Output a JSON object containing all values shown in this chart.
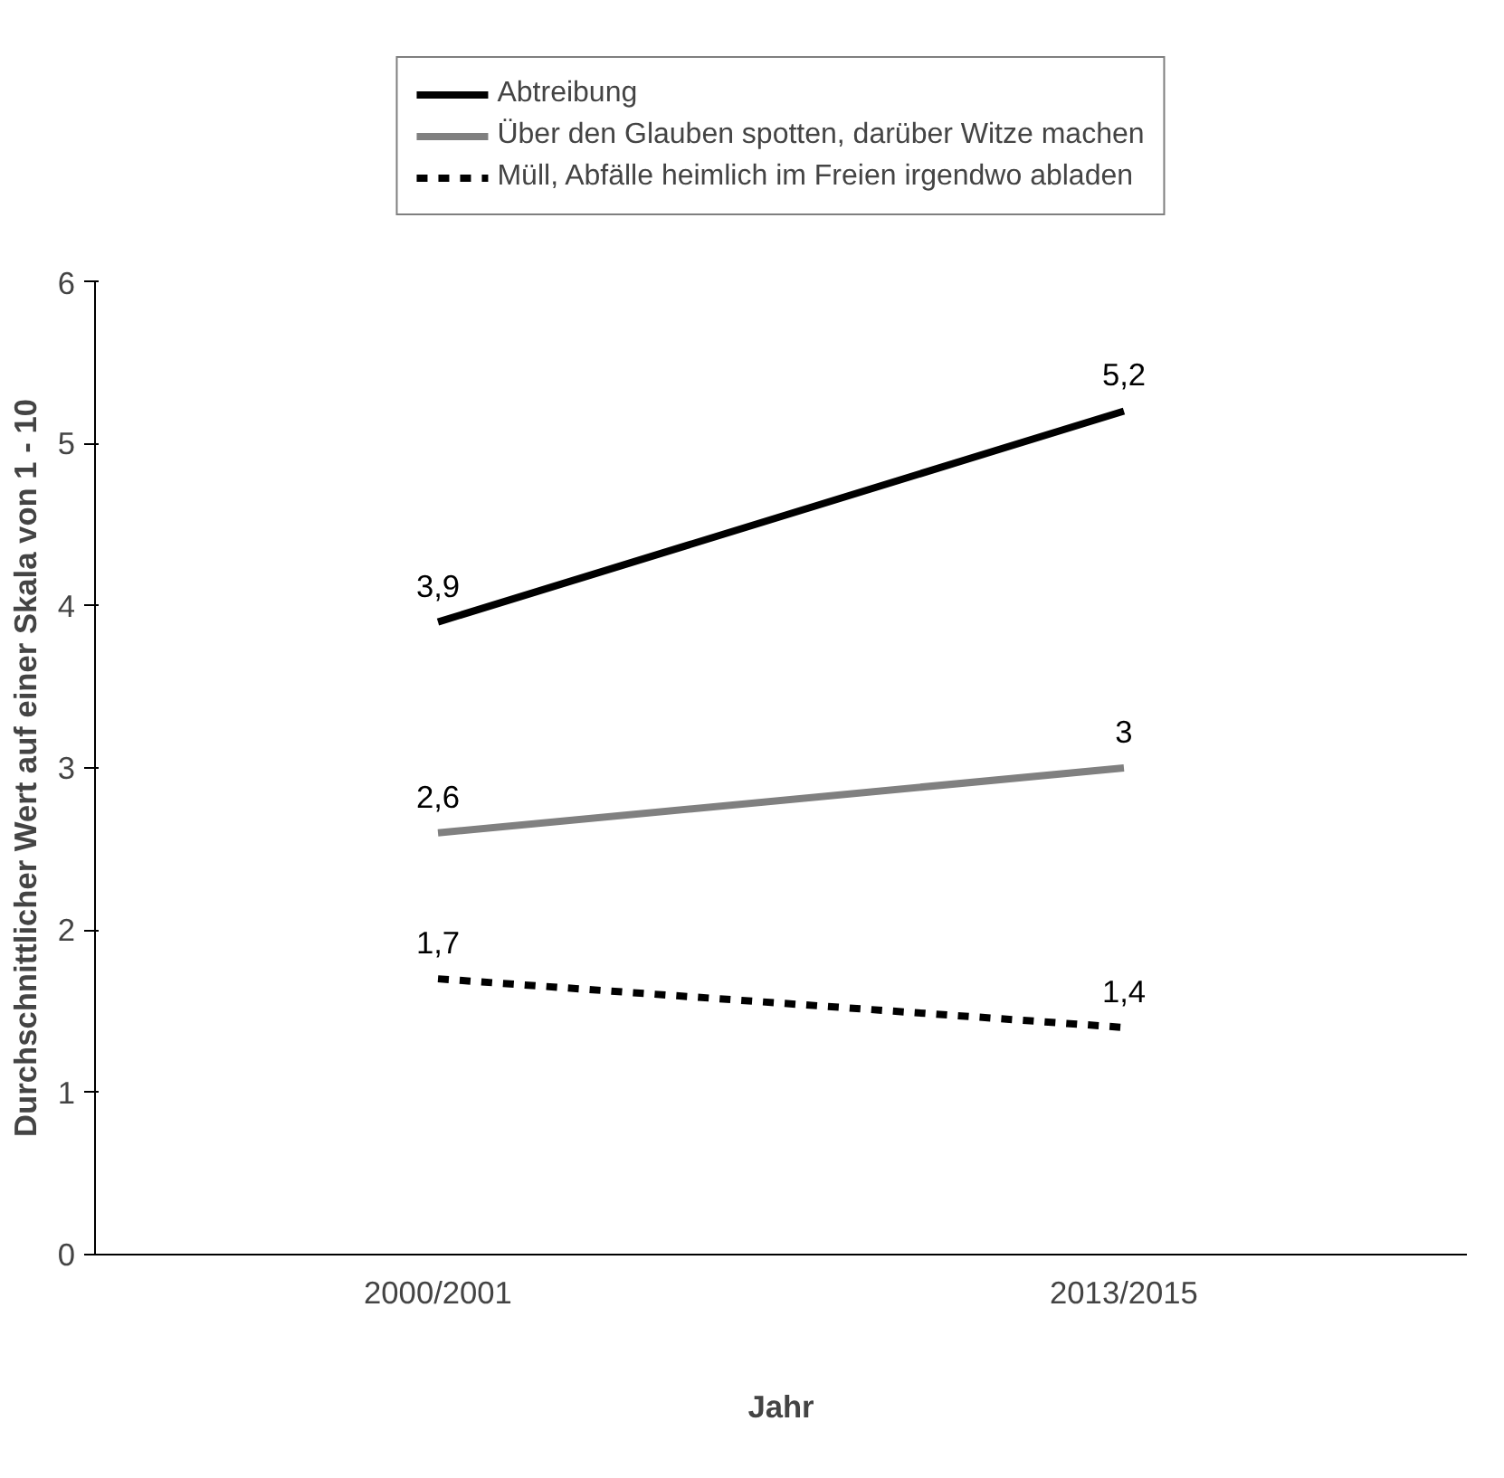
{
  "chart_data": {
    "type": "line",
    "xlabel": "Jahr",
    "ylabel": "Durchschnittlicher Wert auf einer Skala von 1 - 10",
    "categories": [
      "2000/2001",
      "2013/2015"
    ],
    "series": [
      {
        "name": "Abtreibung",
        "color": "#000000",
        "values": [
          3.9,
          5.2
        ],
        "value_labels": [
          "3,9",
          "5,2"
        ],
        "line_style": "solid"
      },
      {
        "name": "Über den Glauben spotten, darüber Witze machen",
        "color": "#808080",
        "values": [
          2.6,
          3.0
        ],
        "value_labels": [
          "2,6",
          "3"
        ],
        "line_style": "solid"
      },
      {
        "name": "Müll, Abfälle heimlich im Freien irgendwo abladen",
        "color": "#000000",
        "values": [
          1.7,
          1.4
        ],
        "value_labels": [
          "1,7",
          "1,4"
        ],
        "line_style": "dashed"
      }
    ],
    "ylim": [
      0,
      6
    ],
    "yticks": [
      0,
      1,
      2,
      3,
      4,
      5,
      6
    ],
    "grid": false,
    "legend": "top",
    "marker": "none"
  }
}
